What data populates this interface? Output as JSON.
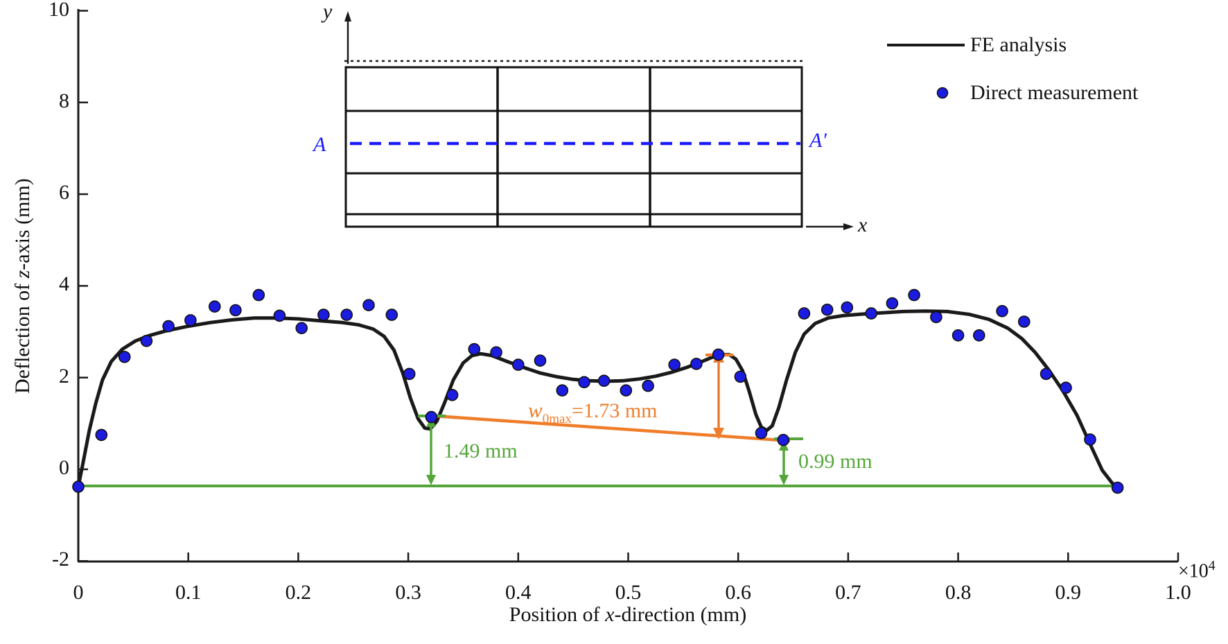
{
  "figure": {
    "y_axis": {
      "title_prefix": "Deflection of ",
      "title_italic": "z",
      "title_suffix": "-axis (mm)"
    },
    "x_axis": {
      "title_prefix": "Position of ",
      "title_italic": "x",
      "title_suffix": "-direction (mm)",
      "exponent_base": "×10",
      "exponent_power": "4"
    }
  },
  "inset": {
    "y_label": "y",
    "x_label": "x",
    "section_start": "A",
    "section_end": "A′"
  },
  "annotations": {
    "w0max": {
      "symbol": "w",
      "subscript": "0max",
      "value_text": "=1.73 mm"
    },
    "left_depth": {
      "label": "1.49 mm"
    },
    "right_depth": {
      "label": "0.99 mm"
    }
  },
  "colors": {
    "axis": "#1a1a1a",
    "curve": "#1a1a1a",
    "marker_blue": "#1c1ce0",
    "green": "#55a63a",
    "orange": "#ef7d2a",
    "section_blue": "#1a1aff"
  },
  "chart_data": {
    "type": "line",
    "title": "",
    "xlabel": "Position of x-direction (mm)",
    "ylabel": "Deflection of z-axis (mm)",
    "x_scale_factor": "×10^4",
    "xlim": [
      0,
      1.0
    ],
    "ylim": [
      -2,
      10
    ],
    "grid": false,
    "legend_position": "top-right",
    "x_ticks": [
      {
        "value": 0.0,
        "label": "0"
      },
      {
        "value": 0.1,
        "label": "0.1"
      },
      {
        "value": 0.2,
        "label": "0.2"
      },
      {
        "value": 0.3,
        "label": "0.3"
      },
      {
        "value": 0.4,
        "label": "0.4"
      },
      {
        "value": 0.5,
        "label": "0.5"
      },
      {
        "value": 0.6,
        "label": "0.6"
      },
      {
        "value": 0.7,
        "label": "0.7"
      },
      {
        "value": 0.8,
        "label": "0.8"
      },
      {
        "value": 0.9,
        "label": "0.9"
      },
      {
        "value": 1.0,
        "label": "1.0"
      }
    ],
    "y_ticks": [
      {
        "value": -2,
        "label": "-2"
      },
      {
        "value": 0,
        "label": "0"
      },
      {
        "value": 2,
        "label": "2"
      },
      {
        "value": 4,
        "label": "4"
      },
      {
        "value": 6,
        "label": "6"
      },
      {
        "value": 8,
        "label": "8"
      },
      {
        "value": 10,
        "label": "10"
      }
    ],
    "series": [
      {
        "name": "FE analysis",
        "type": "line",
        "color": "#1a1a1a",
        "points": [
          [
            0.0,
            -0.38
          ],
          [
            0.004,
            0.1
          ],
          [
            0.01,
            0.85
          ],
          [
            0.016,
            1.45
          ],
          [
            0.022,
            1.95
          ],
          [
            0.03,
            2.35
          ],
          [
            0.04,
            2.62
          ],
          [
            0.052,
            2.8
          ],
          [
            0.065,
            2.92
          ],
          [
            0.08,
            3.02
          ],
          [
            0.1,
            3.12
          ],
          [
            0.12,
            3.2
          ],
          [
            0.14,
            3.26
          ],
          [
            0.16,
            3.3
          ],
          [
            0.18,
            3.3
          ],
          [
            0.2,
            3.28
          ],
          [
            0.22,
            3.24
          ],
          [
            0.24,
            3.2
          ],
          [
            0.255,
            3.15
          ],
          [
            0.268,
            3.06
          ],
          [
            0.278,
            2.9
          ],
          [
            0.287,
            2.6
          ],
          [
            0.295,
            2.1
          ],
          [
            0.302,
            1.55
          ],
          [
            0.309,
            1.1
          ],
          [
            0.315,
            0.9
          ],
          [
            0.32,
            0.88
          ],
          [
            0.326,
            1.05
          ],
          [
            0.333,
            1.45
          ],
          [
            0.341,
            1.95
          ],
          [
            0.35,
            2.32
          ],
          [
            0.358,
            2.48
          ],
          [
            0.366,
            2.52
          ],
          [
            0.376,
            2.48
          ],
          [
            0.39,
            2.35
          ],
          [
            0.405,
            2.22
          ],
          [
            0.42,
            2.1
          ],
          [
            0.435,
            2.02
          ],
          [
            0.45,
            1.96
          ],
          [
            0.465,
            1.93
          ],
          [
            0.48,
            1.92
          ],
          [
            0.495,
            1.93
          ],
          [
            0.51,
            1.97
          ],
          [
            0.525,
            2.03
          ],
          [
            0.54,
            2.12
          ],
          [
            0.553,
            2.22
          ],
          [
            0.565,
            2.33
          ],
          [
            0.576,
            2.44
          ],
          [
            0.585,
            2.5
          ],
          [
            0.592,
            2.5
          ],
          [
            0.598,
            2.4
          ],
          [
            0.604,
            2.15
          ],
          [
            0.61,
            1.7
          ],
          [
            0.616,
            1.2
          ],
          [
            0.621,
            0.92
          ],
          [
            0.626,
            0.85
          ],
          [
            0.631,
            0.95
          ],
          [
            0.637,
            1.35
          ],
          [
            0.644,
            1.95
          ],
          [
            0.652,
            2.55
          ],
          [
            0.66,
            2.95
          ],
          [
            0.67,
            3.18
          ],
          [
            0.682,
            3.3
          ],
          [
            0.695,
            3.35
          ],
          [
            0.71,
            3.38
          ],
          [
            0.73,
            3.41
          ],
          [
            0.75,
            3.44
          ],
          [
            0.77,
            3.45
          ],
          [
            0.79,
            3.44
          ],
          [
            0.81,
            3.38
          ],
          [
            0.828,
            3.27
          ],
          [
            0.845,
            3.08
          ],
          [
            0.858,
            2.85
          ],
          [
            0.87,
            2.55
          ],
          [
            0.882,
            2.18
          ],
          [
            0.895,
            1.72
          ],
          [
            0.908,
            1.18
          ],
          [
            0.92,
            0.55
          ],
          [
            0.931,
            -0.02
          ],
          [
            0.94,
            -0.3
          ],
          [
            0.945,
            -0.38
          ]
        ]
      },
      {
        "name": "Direct measurement",
        "type": "scatter",
        "color": "#1c1ce0",
        "points": [
          [
            0.0,
            -0.38
          ],
          [
            0.021,
            0.75
          ],
          [
            0.042,
            2.45
          ],
          [
            0.062,
            2.8
          ],
          [
            0.082,
            3.12
          ],
          [
            0.102,
            3.25
          ],
          [
            0.124,
            3.55
          ],
          [
            0.143,
            3.47
          ],
          [
            0.164,
            3.8
          ],
          [
            0.183,
            3.35
          ],
          [
            0.203,
            3.08
          ],
          [
            0.223,
            3.37
          ],
          [
            0.244,
            3.37
          ],
          [
            0.264,
            3.58
          ],
          [
            0.285,
            3.37
          ],
          [
            0.301,
            2.08
          ],
          [
            0.321,
            1.14
          ],
          [
            0.34,
            1.62
          ],
          [
            0.36,
            2.62
          ],
          [
            0.38,
            2.55
          ],
          [
            0.4,
            2.28
          ],
          [
            0.42,
            2.37
          ],
          [
            0.44,
            1.72
          ],
          [
            0.46,
            1.9
          ],
          [
            0.478,
            1.93
          ],
          [
            0.498,
            1.72
          ],
          [
            0.518,
            1.82
          ],
          [
            0.542,
            2.28
          ],
          [
            0.562,
            2.3
          ],
          [
            0.582,
            2.5
          ],
          [
            0.602,
            2.02
          ],
          [
            0.621,
            0.79
          ],
          [
            0.641,
            0.64
          ],
          [
            0.66,
            3.4
          ],
          [
            0.681,
            3.48
          ],
          [
            0.699,
            3.53
          ],
          [
            0.721,
            3.4
          ],
          [
            0.74,
            3.62
          ],
          [
            0.76,
            3.8
          ],
          [
            0.78,
            3.32
          ],
          [
            0.8,
            2.92
          ],
          [
            0.819,
            2.92
          ],
          [
            0.84,
            3.45
          ],
          [
            0.86,
            3.22
          ],
          [
            0.88,
            2.08
          ],
          [
            0.898,
            1.78
          ],
          [
            0.92,
            0.65
          ],
          [
            0.945,
            -0.4
          ]
        ]
      }
    ],
    "baseline": {
      "y": -0.38,
      "x_start": 0.0,
      "x_end": 0.945,
      "color": "#55a63a"
    },
    "measurements": {
      "w0max_mm": 1.73,
      "left_depth_mm": 1.49,
      "right_depth_mm": 0.99
    }
  }
}
